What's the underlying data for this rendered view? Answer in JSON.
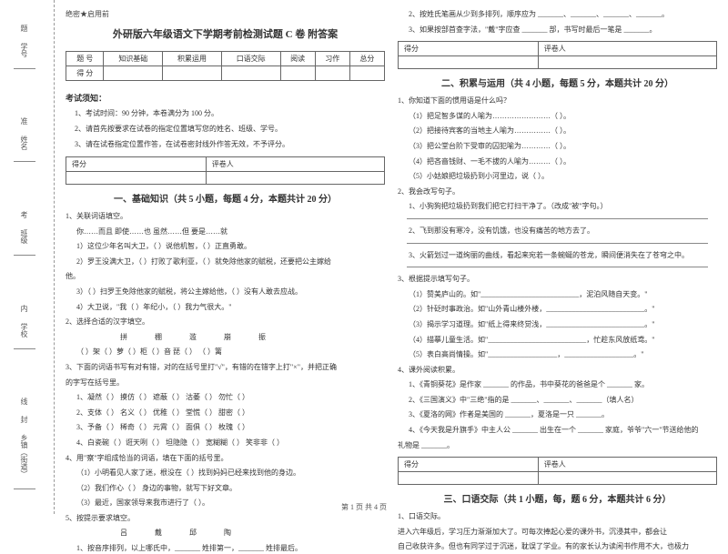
{
  "binding": {
    "labels": [
      "学号",
      "姓名",
      "班级",
      "学校",
      "乡镇（街道）"
    ],
    "side_marks": [
      "题",
      "准",
      "考",
      "内",
      "线",
      "封"
    ]
  },
  "secret": "绝密★启用前",
  "title": "外研版六年级语文下学期考前检测试题 C 卷  附答案",
  "score_table": {
    "headers": [
      "题  号",
      "知识基础",
      "积累运用",
      "口语交际",
      "阅读",
      "习作",
      "总分"
    ],
    "row2_label": "得  分"
  },
  "notice_title": "考试须知：",
  "notices": [
    "1、考试时间：90 分钟，本卷满分为 100 分。",
    "2、请首先按要求在试卷的指定位置填写您的姓名、班级、学号。",
    "3、请在试卷指定位置作答，在试卷密封线外作答无效，不予评分。"
  ],
  "scorebox": {
    "c1": "得分",
    "c2": "评卷人"
  },
  "section1": {
    "title": "一、基础知识（共 5 小题，每题 4 分，本题共计 20 分）",
    "q1": "1、关联词语填空。",
    "q1a": "你……而且     即使……也     虽然……但     要是……就",
    "q1b": "1）这位少年名叫大卫，（     ）说他机智，（     ）正直勇敢。",
    "q1c": "2）罗王没满大卫，（     ）打败了歌利亚，（     ）就免除他家的赋税，还要把公主嫁给",
    "q1d": "他。",
    "q1e": "3）（     ）扫罗王免除他家的赋税，将公主嫁给他，（     ）没有人敢去应战。",
    "q1f": "4）大卫说，\"我（     ）年纪小，（     ）我力气很大。\"",
    "q2": "2、选择合适的汉字填空。",
    "q2chars": "拼     棚     滥     崩     振",
    "q2a": "（     ）架（     ）萝（     ）柜（     ）音     琵（     ）     （     ）篱",
    "q3": "3、下面的词语书写有对有错，对的在括号里打\"√\"，有错的在错字上打\"×\"，并把正确",
    "q3b": "的字写在括号里。",
    "q3_1": "1、凝然（     ）    摸仿（     ）    遮蔽（     ）    沽萎（     ）    勿忙（     ）",
    "q3_2": "2、支体（     ）    名义（     ）    优稚（     ）    堂慌（     ）    甜密（     ）",
    "q3_3": "3、予备（     ）    稀奇（     ）    元霄（     ）    面俱（     ）    枚瑰（     ）",
    "q3_4": "4、白瓷碗（     ）诳天咧（     ）    坦隐隐（     ）    宽糊糊（     ）   笑非非（     ）",
    "q4": "4、用\"察\"字组成恰当的词语，填在下面的括号里。",
    "q4a": "（1）小明看见人家了迷，根没在（     ）找到妈妈已经来找到他的身边。",
    "q4b": "（2）我们作心（     ）    身边的事物，就写下好文章。",
    "q4c": "（3）最近，国家领导来我市进行了（     ）。",
    "q5": "5、按提示要求填空。",
    "q5chars": "吕     戴     邱     陶",
    "q5a": "1、按音序排列，以上哪氏中，_______ 姓排第一，_______ 姓排最后。"
  },
  "col2": {
    "top2": "2、按姓氏笔画从少到多排列，顺序应为 _______、_______、_______、_______。",
    "top3": "3、如果按部首查字法，\"戴\"字应查 _______ 部，书写时最后一笔是 _______。",
    "section2_title": "二、积累与运用（共 4 小题，每题 5 分，本题共计 20 分）",
    "q1": "1、你知道下面的惯用语是什么吗？",
    "q1a": "（1）把足智多谋的人喻为……………………（          ）。",
    "q1b": "（2）把接待宾客的当地主人喻为……………（          ）。",
    "q1c": "（3）把公堂台阶下受审的囚犯喻为…………（          ）。",
    "q1d": "（4）把吝啬钱财、一毛不拔的人喻为………（          ）。",
    "q1e": "（5）小姑娘把垃圾扔到小河里边，说（          ）。",
    "q2": "2、我会改写句子。",
    "q2a": "1、小狗狗把垃圾扔到我们把它打扫干净了。（改成\"被\"字句。）",
    "q2b": "2、飞到那没有寒冷，没有饥饿，也没有痛苦的地方去了。",
    "q2c": "3、火箭划过一道绚丽的曲线，看起来宛若一条蜿蜒的苍龙，瞬间便消失在了苍穹之中。",
    "q3": "3、根据提示填写句子。",
    "q3a": "（1）赞美庐山的。如\"___________________________，泥泊风随自天变。\"",
    "q3b": "（2）针砭时事政治。如\"山外青山楼外楼，___________________________。\"",
    "q3c": "（3）揭示学习道理。如\"纸上得来终觉浅，___________________________。\"",
    "q3d": "（4）描摹儿童生活。如\"___________________________，忙趁东风放纸鸢。\"",
    "q3e": "（5）表白高尚情操。如\"___________________，___________________。\"",
    "q4": "4、课外阅读积累。",
    "q4a": "1、《青铜葵花》是作家 _______ 的作品，书中葵花的爸爸是个 _______ 家。",
    "q4b": "2、《三国演义》中\"三绝\"指的是 _______、_______、_______（填人名）",
    "q4c": "3、《夏洛的网》作者是美国的 _______，夏洛是一只 _______。",
    "q4d": "4、《今天我是升旗手》中主人公 _______ 出生在一个 _______ 家庭，爷爷\"六一\"节送给他的",
    "q4e": "礼物是 _______。",
    "section3_title": "三、口语交际（共 1 小题，每，题 6 分，本题共计 6 分）",
    "q3_1": "1、口语交际。",
    "q3_1a": "    进入六年级后，学习压力渐渐加大了。可每次捧起心爱的课外书，沉浸其中，都会让",
    "q3_1b": "自己收获许多。但也有同学过于沉迷，耽误了学业。有的家长认为读闲书作用不大，也极力"
  },
  "footer": "第 1 页  共 4 页"
}
